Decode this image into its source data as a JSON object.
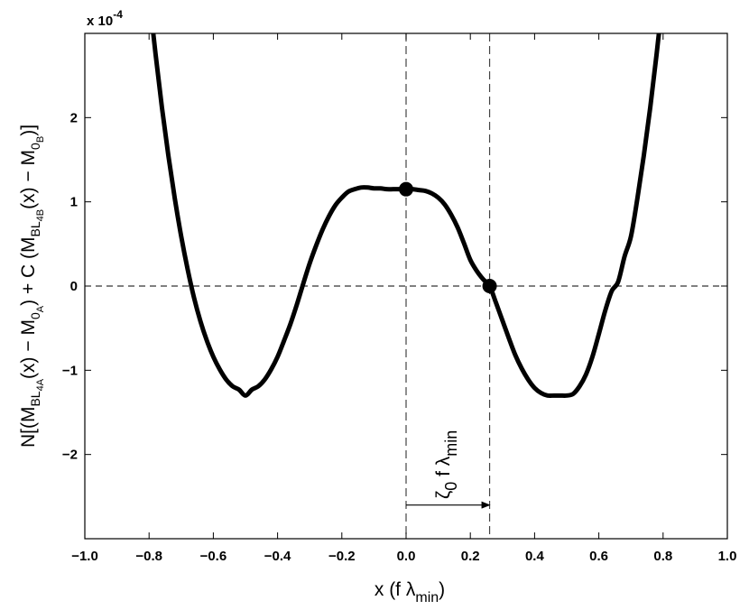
{
  "chart_data": {
    "type": "line",
    "xlim": [
      -1.0,
      1.0
    ],
    "ylim": [
      -3.0,
      3.0
    ],
    "y_multiplier": "x 10",
    "y_multiplier_exponent": "-4",
    "xticks": [
      -1.0,
      -0.8,
      -0.6,
      -0.4,
      -0.2,
      0.0,
      0.2,
      0.4,
      0.6,
      0.8,
      1.0
    ],
    "xtick_labels": [
      "−1.0",
      "−0.8",
      "−0.6",
      "−0.4",
      "−0.2",
      "0.0",
      "0.2",
      "0.4",
      "0.6",
      "0.8",
      "1.0"
    ],
    "yticks": [
      -2,
      -1,
      0,
      1,
      2
    ],
    "ytick_labels": [
      "−2",
      "−1",
      "0",
      "1",
      "2"
    ],
    "grid": false,
    "xlabel": {
      "main": "x (f λ",
      "sub": "min",
      "close": ")"
    },
    "ylabel": {
      "p1": "N[(M",
      "p1_sub": "BL",
      "p1_subsub": "4A",
      "p2": "(x) − M",
      "p2_sub": "0",
      "p2_subsub": "A",
      "p3": ") + C (M",
      "p3_sub": "BL",
      "p3_subsub": "4B",
      "p4": "(x) − M",
      "p4_sub": "0",
      "p4_subsub": "B",
      "p5": ")]"
    },
    "series": [
      {
        "x": [
          -0.8,
          -0.78,
          -0.76,
          -0.74,
          -0.72,
          -0.7,
          -0.68,
          -0.66,
          -0.64,
          -0.62,
          -0.6,
          -0.58,
          -0.56,
          -0.54,
          -0.52,
          -0.5,
          -0.48,
          -0.46,
          -0.44,
          -0.42,
          -0.4,
          -0.38,
          -0.36,
          -0.34,
          -0.32,
          -0.3,
          -0.28,
          -0.26,
          -0.24,
          -0.22,
          -0.2,
          -0.18,
          -0.16,
          -0.14,
          -0.12,
          -0.1,
          -0.08,
          -0.06,
          -0.04,
          -0.02,
          0.0,
          0.02,
          0.04,
          0.06,
          0.08,
          0.1,
          0.12,
          0.14,
          0.16,
          0.18,
          0.2,
          0.22,
          0.24,
          0.26,
          0.28,
          0.3,
          0.32,
          0.34,
          0.36,
          0.38,
          0.4,
          0.42,
          0.44,
          0.46,
          0.48,
          0.5,
          0.52,
          0.54,
          0.56,
          0.58,
          0.6,
          0.62,
          0.64,
          0.66,
          0.68,
          0.7,
          0.72,
          0.74,
          0.76,
          0.78,
          0.8
        ],
        "y": [
          3.46,
          2.76,
          2.12,
          1.55,
          1.04,
          0.59,
          0.2,
          -0.14,
          -0.42,
          -0.65,
          -0.84,
          -0.99,
          -1.11,
          -1.19,
          -1.23,
          -1.3,
          -1.23,
          -1.19,
          -1.11,
          -0.99,
          -0.84,
          -0.65,
          -0.45,
          -0.22,
          0.03,
          0.27,
          0.48,
          0.67,
          0.83,
          0.96,
          1.05,
          1.12,
          1.15,
          1.17,
          1.17,
          1.16,
          1.16,
          1.15,
          1.15,
          1.15,
          1.15,
          1.15,
          1.14,
          1.13,
          1.1,
          1.05,
          0.97,
          0.85,
          0.7,
          0.51,
          0.31,
          0.18,
          0.08,
          0.0,
          -0.2,
          -0.41,
          -0.62,
          -0.82,
          -0.98,
          -1.11,
          -1.21,
          -1.27,
          -1.3,
          -1.3,
          -1.3,
          -1.3,
          -1.28,
          -1.19,
          -1.05,
          -0.84,
          -0.57,
          -0.29,
          -0.06,
          0.05,
          0.35,
          0.59,
          1.04,
          1.55,
          2.12,
          2.76,
          3.46
        ]
      }
    ],
    "markers": [
      {
        "x": 0.0,
        "y": 1.15
      },
      {
        "x": 0.26,
        "y": 0.0
      }
    ],
    "hlines": [
      0
    ],
    "vlines": [
      0.0,
      0.26
    ],
    "arrow": {
      "x_from": 0.0,
      "x_to": 0.26,
      "y": -2.6
    },
    "annotation": {
      "zeta": "ζ",
      "zeta_sub": "0",
      "mid": " f λ",
      "min_sub": "min"
    }
  }
}
